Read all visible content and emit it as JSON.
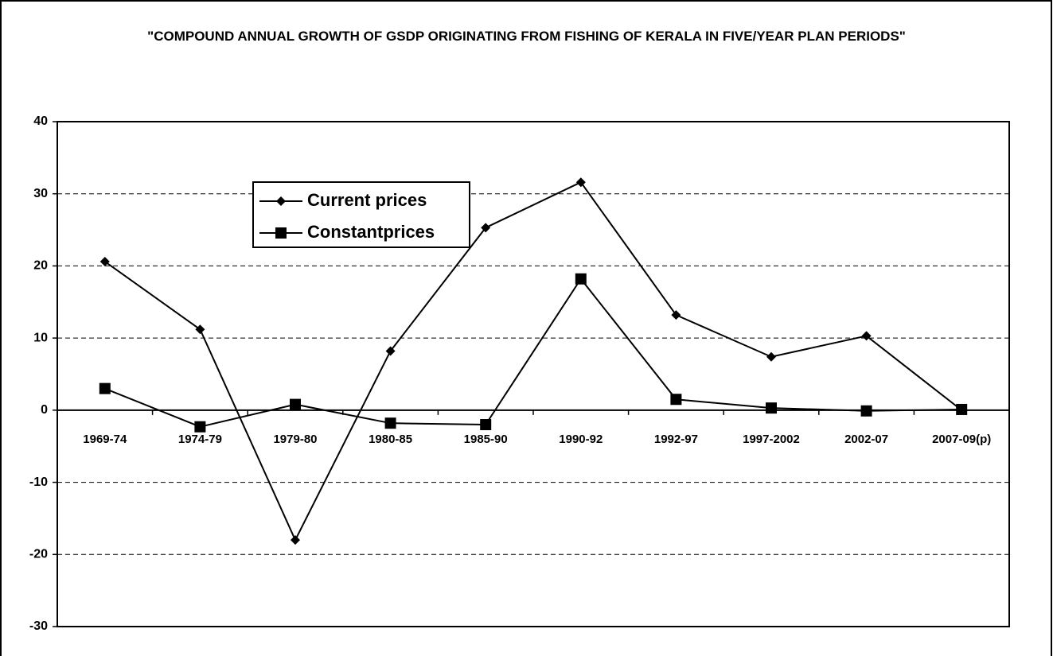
{
  "chart_data": {
    "type": "line",
    "title": "\"COMPOUND ANNUAL GROWTH OF GSDP ORIGINATING FROM FISHING OF KERALA IN FIVE/YEAR PLAN PERIODS\"",
    "categories": [
      "1969-74",
      "1974-79",
      "1979-80",
      "1980-85",
      "1985-90",
      "1990-92",
      "1992-97",
      "1997-2002",
      "2002-07",
      "2007-09(p)"
    ],
    "series": [
      {
        "name": "Current prices",
        "color": "#000000",
        "marker": "diamond",
        "values": [
          20.6,
          11.2,
          -18,
          8.2,
          25.3,
          31.6,
          13.2,
          7.4,
          10.3,
          0
        ]
      },
      {
        "name": "Constantprices",
        "color": "#000000",
        "marker": "square",
        "values": [
          3.0,
          -2.3,
          0.8,
          -1.8,
          -2.0,
          18.2,
          1.5,
          0.3,
          -0.1,
          0.1
        ]
      }
    ],
    "ylim": [
      -30,
      40
    ],
    "yticks": [
      -30,
      -20,
      -10,
      0,
      10,
      20,
      30,
      40
    ],
    "grid": true
  }
}
